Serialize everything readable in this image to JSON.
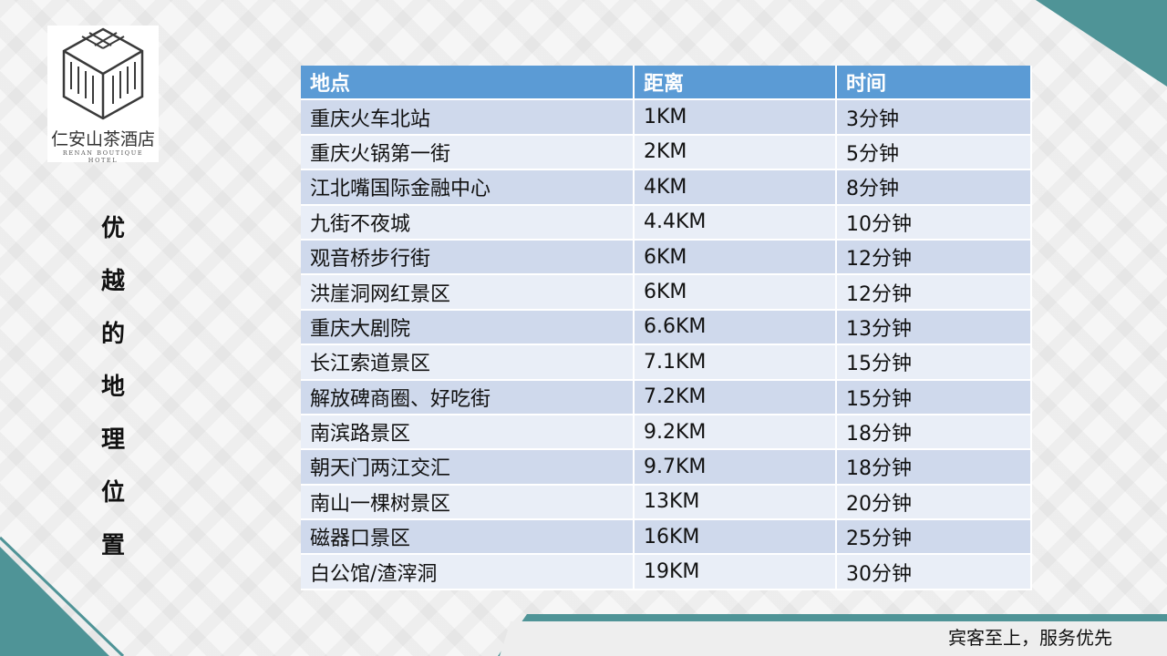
{
  "brand": {
    "name": "仁安山茶酒店",
    "subtitle": "RENAN BOUTIQUE HOTEL"
  },
  "side_title": [
    "优",
    "越",
    "的",
    "地",
    "理",
    "位",
    "置"
  ],
  "table": {
    "headers": [
      "地点",
      "距离",
      "时间"
    ],
    "rows": [
      [
        "重庆火车北站",
        "1KM",
        "3分钟"
      ],
      [
        "重庆火锅第一街",
        "2KM",
        "5分钟"
      ],
      [
        "江北嘴国际金融中心",
        "4KM",
        "8分钟"
      ],
      [
        "九街不夜城",
        "4.4KM",
        "10分钟"
      ],
      [
        "观音桥步行街",
        "6KM",
        "12分钟"
      ],
      [
        "洪崖洞网红景区",
        "6KM",
        "12分钟"
      ],
      [
        "重庆大剧院",
        "6.6KM",
        "13分钟"
      ],
      [
        "长江索道景区",
        "7.1KM",
        "15分钟"
      ],
      [
        "解放碑商圈、好吃街",
        "7.2KM",
        "15分钟"
      ],
      [
        "南滨路景区",
        "9.2KM",
        "18分钟"
      ],
      [
        "朝天门两江交汇",
        "9.7KM",
        "18分钟"
      ],
      [
        "南山一棵树景区",
        "13KM",
        "20分钟"
      ],
      [
        "磁器口景区",
        "16KM",
        "25分钟"
      ],
      [
        "白公馆/渣滓洞",
        "19KM",
        "30分钟"
      ]
    ]
  },
  "footer": {
    "slogan": "宾客至上，服务优先"
  },
  "colors": {
    "accent_teal": "#4f9497",
    "header_blue": "#5b9bd5",
    "row_odd": "#cfd9ec",
    "row_even": "#e9eef7"
  }
}
